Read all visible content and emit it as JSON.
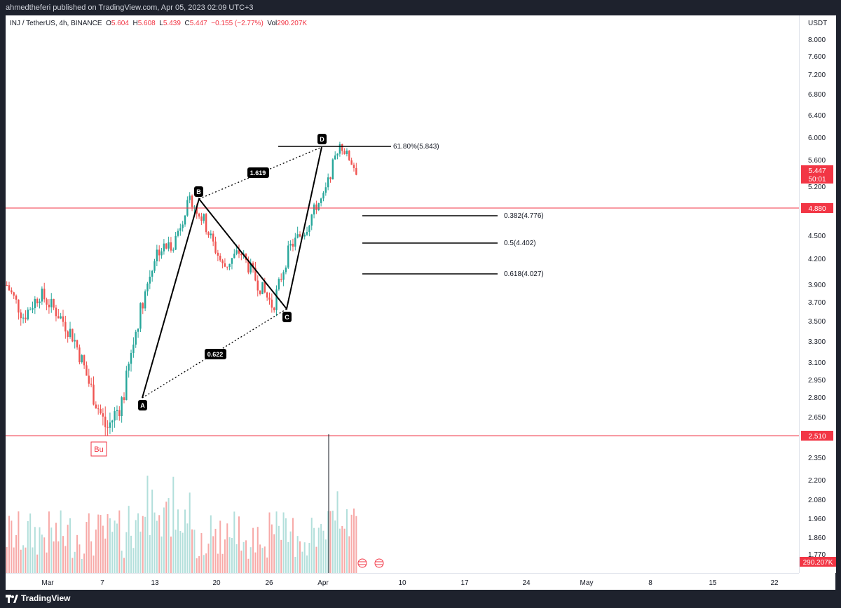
{
  "header": {
    "published": "ahmedtheferi published on TradingView.com, Apr 05, 2023 02:09 UTC+3"
  },
  "legend": {
    "symbol": "INJ / TetherUS, 4h, BINANCE",
    "o_label": "O",
    "o": "5.604",
    "h_label": "H",
    "h": "5.608",
    "l_label": "L",
    "l": "5.439",
    "c_label": "C",
    "c": "5.447",
    "change": "−0.155 (−2.77%)",
    "vol_label": "Vol",
    "vol": "290.207K"
  },
  "price_axis": {
    "currency": "USDT",
    "ticks": [
      "8.000",
      "7.600",
      "7.200",
      "6.800",
      "6.400",
      "6.000",
      "5.600",
      "5.200",
      "4.800",
      "4.500",
      "4.200",
      "3.900",
      "3.700",
      "3.500",
      "3.300",
      "3.100",
      "2.950",
      "2.800",
      "2.650",
      "2.500",
      "2.350",
      "2.200",
      "2.080",
      "1.960",
      "1.860",
      "1.770"
    ],
    "last_price": "5.447",
    "countdown": "50:01",
    "level_high": "4.880",
    "level_low": "2.510",
    "volume_label": "290.207K"
  },
  "time_axis": {
    "ticks": [
      "Mar",
      "7",
      "13",
      "20",
      "26",
      "Apr",
      "10",
      "17",
      "24",
      "May",
      "8",
      "15",
      "22"
    ]
  },
  "pattern": {
    "points": [
      "A",
      "B",
      "C",
      "D"
    ],
    "ratio_bd": "1.619",
    "ratio_ac": "0.622",
    "fib_d": "61.80%(5.843)",
    "fib_levels": [
      "0.382(4.776)",
      "0.5(4.402)",
      "0.618(4.027)"
    ]
  },
  "annotation": {
    "bu": "Bu"
  },
  "footer": {
    "brand": "TradingView"
  },
  "colors": {
    "up": "#26a69a",
    "down": "#ef5350",
    "line_red": "#f23645",
    "background": "#1e222d"
  },
  "chart_data": {
    "type": "candlestick",
    "symbol": "INJ/USDT",
    "interval": "4h",
    "price_levels": [
      4.88,
      2.51
    ],
    "pattern_prices": {
      "A": 2.78,
      "B": 4.98,
      "C": 3.64,
      "D": 5.843
    },
    "close_path": [
      {
        "date": "Feb 27",
        "close": 3.9
      },
      {
        "date": "Mar 1",
        "close": 3.55
      },
      {
        "date": "Mar 3",
        "close": 3.8
      },
      {
        "date": "Mar 5",
        "close": 3.6
      },
      {
        "date": "Mar 7",
        "close": 3.35
      },
      {
        "date": "Mar 9",
        "close": 2.9
      },
      {
        "date": "Mar 10",
        "close": 2.55
      },
      {
        "date": "Mar 11",
        "close": 2.8
      },
      {
        "date": "Mar 13",
        "close": 3.6
      },
      {
        "date": "Mar 15",
        "close": 4.3
      },
      {
        "date": "Mar 17",
        "close": 4.4
      },
      {
        "date": "Mar 18",
        "close": 4.95
      },
      {
        "date": "Mar 20",
        "close": 4.6
      },
      {
        "date": "Mar 22",
        "close": 4.1
      },
      {
        "date": "Mar 24",
        "close": 4.3
      },
      {
        "date": "Mar 26",
        "close": 3.95
      },
      {
        "date": "Mar 28",
        "close": 3.66
      },
      {
        "date": "Mar 30",
        "close": 4.35
      },
      {
        "date": "Apr 1",
        "close": 4.6
      },
      {
        "date": "Apr 3",
        "close": 5.0
      },
      {
        "date": "Apr 4",
        "close": 5.9
      },
      {
        "date": "Apr 5",
        "close": 5.447
      }
    ]
  }
}
